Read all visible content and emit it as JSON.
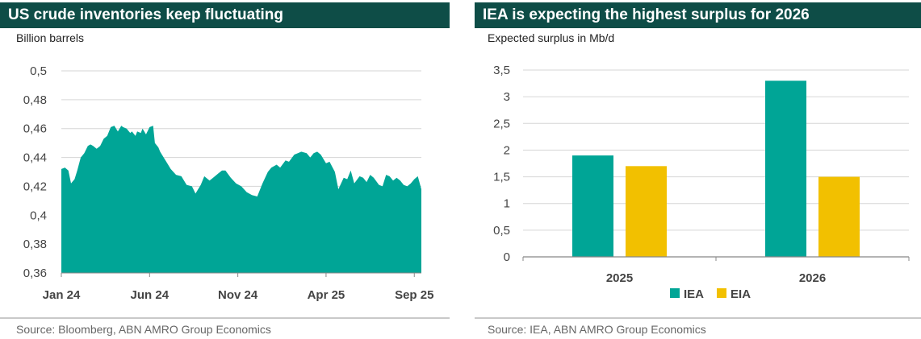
{
  "left": {
    "title": "US crude inventories keep fluctuating",
    "subtitle": "Billion barrels",
    "source": "Source: Bloomberg, ABN AMRO Group Economics"
  },
  "right": {
    "title": "IEA is expecting the highest surplus for 2026",
    "subtitle": "Expected surplus in Mb/d",
    "source": "Source: IEA, ABN AMRO Group Economics"
  },
  "colors": {
    "teal": "#00a596",
    "yellow": "#f2c000",
    "title_bg": "#0e4d47"
  },
  "chart_data": [
    {
      "type": "area",
      "title": "US crude inventories keep fluctuating",
      "ylabel": "Billion barrels",
      "ylim": [
        0.36,
        0.5
      ],
      "yticks": [
        0.36,
        0.38,
        0.4,
        0.42,
        0.44,
        0.46,
        0.48,
        0.5
      ],
      "ytick_labels": [
        "0,36",
        "0,38",
        "0,4",
        "0,42",
        "0,44",
        "0,46",
        "0,48",
        "0,5"
      ],
      "xlim": [
        0,
        20.4
      ],
      "xtick_positions": [
        0,
        5,
        10,
        15,
        20
      ],
      "xtick_labels": [
        "Jan 24",
        "Jun 24",
        "Nov 24",
        "Apr 25",
        "Sep 25"
      ],
      "grid": true,
      "x": [
        0,
        0.2,
        0.4,
        0.55,
        0.75,
        0.9,
        1.1,
        1.3,
        1.5,
        1.65,
        1.8,
        2.0,
        2.2,
        2.4,
        2.6,
        2.8,
        3.0,
        3.2,
        3.4,
        3.5,
        3.7,
        3.9,
        4.0,
        4.2,
        4.3,
        4.5,
        4.6,
        4.8,
        5.0,
        5.2,
        5.3,
        5.5,
        5.6,
        5.8,
        6.0,
        6.2,
        6.5,
        6.8,
        7.1,
        7.4,
        7.6,
        7.9,
        8.1,
        8.4,
        8.6,
        8.9,
        9.1,
        9.3,
        9.6,
        9.9,
        10.2,
        10.5,
        10.8,
        11.1,
        11.4,
        11.7,
        11.9,
        12.2,
        12.4,
        12.7,
        12.9,
        13.2,
        13.4,
        13.6,
        13.9,
        14.1,
        14.3,
        14.5,
        14.7,
        15.0,
        15.2,
        15.5,
        15.7,
        16.0,
        16.2,
        16.4,
        16.6,
        16.9,
        17.1,
        17.3,
        17.5,
        17.7,
        18.0,
        18.2,
        18.4,
        18.6,
        18.8,
        19.0,
        19.2,
        19.4,
        19.6,
        19.8,
        20.0,
        20.2,
        20.4
      ],
      "y": [
        0.432,
        0.433,
        0.431,
        0.422,
        0.425,
        0.431,
        0.44,
        0.443,
        0.448,
        0.449,
        0.448,
        0.446,
        0.448,
        0.453,
        0.455,
        0.461,
        0.462,
        0.458,
        0.462,
        0.461,
        0.46,
        0.457,
        0.458,
        0.455,
        0.458,
        0.457,
        0.46,
        0.456,
        0.461,
        0.462,
        0.45,
        0.447,
        0.444,
        0.44,
        0.436,
        0.432,
        0.428,
        0.427,
        0.421,
        0.42,
        0.415,
        0.421,
        0.427,
        0.424,
        0.426,
        0.429,
        0.431,
        0.431,
        0.426,
        0.422,
        0.42,
        0.416,
        0.414,
        0.413,
        0.422,
        0.43,
        0.433,
        0.435,
        0.433,
        0.438,
        0.437,
        0.442,
        0.443,
        0.444,
        0.443,
        0.44,
        0.443,
        0.444,
        0.442,
        0.436,
        0.437,
        0.43,
        0.418,
        0.426,
        0.425,
        0.431,
        0.422,
        0.427,
        0.426,
        0.423,
        0.428,
        0.426,
        0.421,
        0.42,
        0.428,
        0.427,
        0.424,
        0.426,
        0.424,
        0.421,
        0.42,
        0.422,
        0.425,
        0.427,
        0.418
      ],
      "color": "#00a596"
    },
    {
      "type": "bar",
      "title": "IEA is expecting the highest surplus for 2026",
      "ylabel": "Expected surplus in Mb/d",
      "ylim": [
        0,
        3.5
      ],
      "yticks": [
        0,
        0.5,
        1,
        1.5,
        2,
        2.5,
        3,
        3.5
      ],
      "ytick_labels": [
        "0",
        "0,5",
        "1",
        "1,5",
        "2",
        "2,5",
        "3",
        "3,5"
      ],
      "categories": [
        "2025",
        "2026"
      ],
      "series": [
        {
          "name": "IEA",
          "values": [
            1.9,
            3.3
          ],
          "color": "#00a596"
        },
        {
          "name": "EIA",
          "values": [
            1.7,
            1.5
          ],
          "color": "#f2c000"
        }
      ],
      "grid": true,
      "legend": "bottom-center"
    }
  ]
}
